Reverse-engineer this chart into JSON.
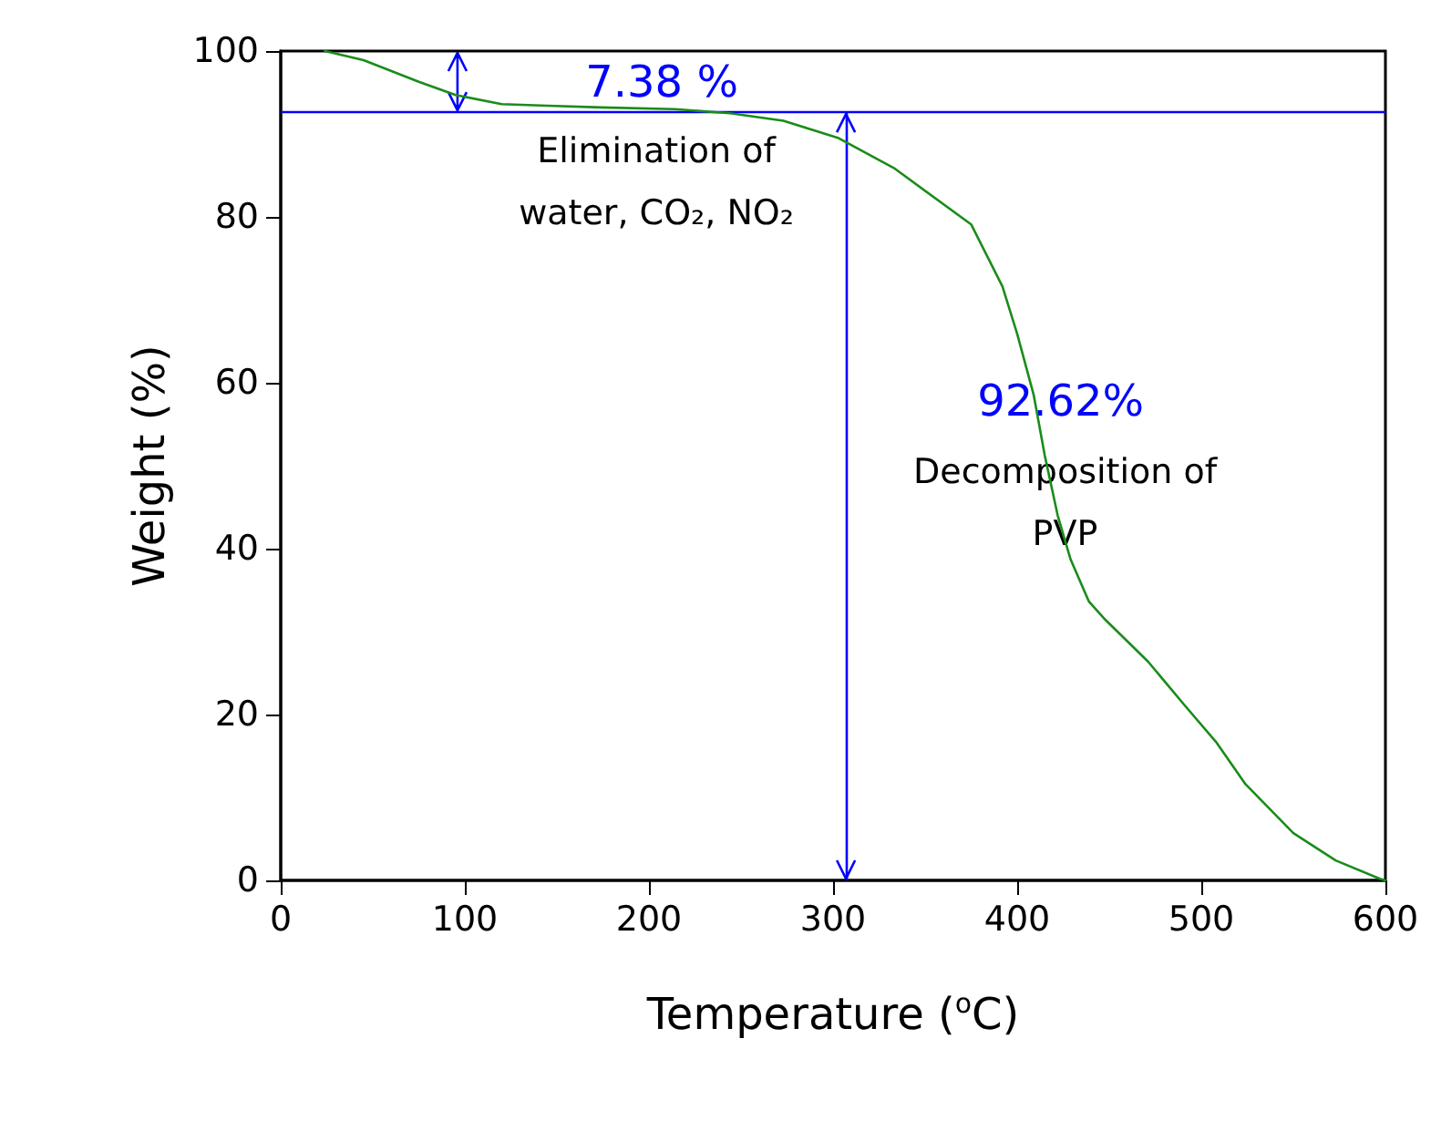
{
  "chart_data": {
    "type": "line",
    "xlabel": "Temperature ($^{o}$C)",
    "ylabel": "Weight (%)",
    "series": [
      {
        "color": "#1a8c1a",
        "x": [
          24,
          45,
          75,
          95,
          120,
          145,
          174,
          214,
          244,
          273,
          303,
          333,
          375,
          392,
          400,
          409,
          415,
          422,
          429,
          439,
          448,
          471,
          491,
          508,
          524,
          550,
          573,
          597,
          600
        ],
        "values": [
          100,
          98.9,
          96.3,
          94.7,
          93.6,
          93.4,
          93.2,
          93.0,
          92.5,
          91.6,
          89.5,
          85.9,
          79.1,
          71.6,
          65.9,
          58.5,
          51.2,
          44,
          38.7,
          33.6,
          31.4,
          26.4,
          21.1,
          16.7,
          11.6,
          5.7,
          2.4,
          0.2,
          0
        ]
      }
    ],
    "xlim": [
      0,
      600
    ],
    "xticks": [
      0,
      100,
      200,
      300,
      400,
      500,
      600
    ],
    "ylim": [
      0,
      100
    ],
    "yticks": [
      0,
      20,
      40,
      60,
      80,
      100
    ],
    "ref_lines": [
      {
        "axis": "y",
        "value": 92.62,
        "color": "#0000ff"
      },
      {
        "axis": "x",
        "value": 307,
        "color": "#0000ff"
      }
    ],
    "annotations": [
      "7.38 %",
      "Elimination of water, CO₂, NO₂",
      "92.62%",
      "Decomposition of PVP"
    ],
    "grid": false,
    "marker": "none",
    "line_style": "solid"
  }
}
